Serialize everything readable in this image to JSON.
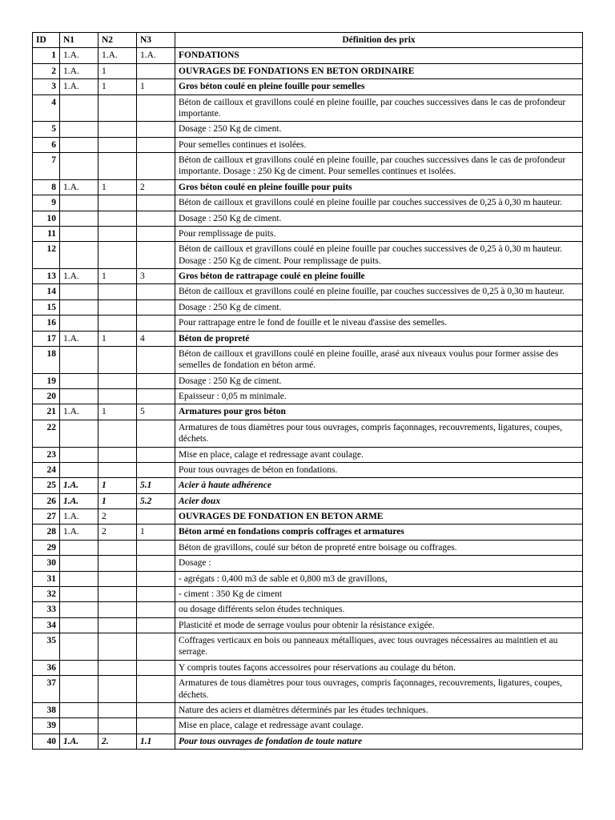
{
  "headers": {
    "id": "ID",
    "n1": "N1",
    "n2": "N2",
    "n3": "N3",
    "def": "Définition des prix"
  },
  "rows": [
    {
      "id": "1",
      "n1": "1.A.",
      "n2": "1.A.",
      "n3": "1.A.",
      "def": "FONDATIONS",
      "cls": "b"
    },
    {
      "id": "2",
      "n1": "1.A.",
      "n2": "1",
      "n3": "",
      "def": "OUVRAGES DE FONDATIONS EN BETON ORDINAIRE",
      "cls": "b"
    },
    {
      "id": "3",
      "n1": "1.A.",
      "n2": "1",
      "n3": "1",
      "def": "Gros béton coulé en pleine fouille pour semelles",
      "cls": "b"
    },
    {
      "id": "4",
      "n1": "",
      "n2": "",
      "n3": "",
      "def": "Béton de cailloux et gravillons coulé en pleine fouille, par couches successives dans le cas de profondeur importante.",
      "cls": "j"
    },
    {
      "id": "5",
      "n1": "",
      "n2": "",
      "n3": "",
      "def": "Dosage : 250 Kg de ciment."
    },
    {
      "id": "6",
      "n1": "",
      "n2": "",
      "n3": "",
      "def": "Pour semelles continues et isolées."
    },
    {
      "id": "7",
      "n1": "",
      "n2": "",
      "n3": "",
      "def": "Béton de cailloux et gravillons coulé en pleine fouille, par couches successives dans le cas de profondeur importante. Dosage : 250 Kg de ciment. Pour semelles continues et isolées.",
      "cls": "j"
    },
    {
      "id": "8",
      "n1": "1.A.",
      "n2": "1",
      "n3": "2",
      "def": "Gros béton coulé en pleine fouille pour puits",
      "cls": "b"
    },
    {
      "id": "9",
      "n1": "",
      "n2": "",
      "n3": "",
      "def": "Béton de cailloux et gravillons coulé en pleine fouille par couches successives de 0,25 à 0,30 m hauteur.",
      "cls": "j"
    },
    {
      "id": "10",
      "n1": "",
      "n2": "",
      "n3": "",
      "def": "Dosage : 250 Kg de ciment."
    },
    {
      "id": "11",
      "n1": "",
      "n2": "",
      "n3": "",
      "def": "Pour remplissage de puits."
    },
    {
      "id": "12",
      "n1": "",
      "n2": "",
      "n3": "",
      "def": "Béton de cailloux et gravillons coulé en pleine fouille par couches successives de 0,25 à 0,30 m hauteur. Dosage : 250 Kg de ciment. Pour remplissage de puits.",
      "cls": "j"
    },
    {
      "id": "13",
      "n1": "1.A.",
      "n2": "1",
      "n3": "3",
      "def": "Gros béton de rattrapage coulé en pleine fouille",
      "cls": "b"
    },
    {
      "id": "14",
      "n1": "",
      "n2": "",
      "n3": "",
      "def": "Béton de cailloux et gravillons coulé en pleine fouille, par couches successives de 0,25 à 0,30 m hauteur.",
      "cls": "j"
    },
    {
      "id": "15",
      "n1": "",
      "n2": "",
      "n3": "",
      "def": "Dosage : 250 Kg de ciment."
    },
    {
      "id": "16",
      "n1": "",
      "n2": "",
      "n3": "",
      "def": "Pour rattrapage entre le fond de fouille et le niveau d'assise des semelles."
    },
    {
      "id": "17",
      "n1": "1.A.",
      "n2": "1",
      "n3": "4",
      "def": "Béton de propreté",
      "cls": "b"
    },
    {
      "id": "18",
      "n1": "",
      "n2": "",
      "n3": "",
      "def": "Béton de cailloux et gravillons coulé en pleine fouille, arasé aux niveaux voulus pour former assise des semelles de fondation en béton armé.",
      "cls": "j"
    },
    {
      "id": "19",
      "n1": "",
      "n2": "",
      "n3": "",
      "def": "Dosage : 250 Kg de ciment."
    },
    {
      "id": "20",
      "n1": "",
      "n2": "",
      "n3": "",
      "def": "Epaisseur : 0,05 m minimale."
    },
    {
      "id": "21",
      "n1": "1.A.",
      "n2": "1",
      "n3": "5",
      "def": "Armatures pour gros béton",
      "cls": "b"
    },
    {
      "id": "22",
      "n1": "",
      "n2": "",
      "n3": "",
      "def": "Armatures de tous diamètres pour tous ouvrages, compris façonnages, recouvrements, ligatures, coupes, déchets.",
      "cls": "j"
    },
    {
      "id": "23",
      "n1": "",
      "n2": "",
      "n3": "",
      "def": "Mise en place, calage et redressage avant coulage."
    },
    {
      "id": "24",
      "n1": "",
      "n2": "",
      "n3": "",
      "def": "Pour tous ouvrages de béton en fondations."
    },
    {
      "id": "25",
      "n1": "1.A.",
      "n2": "1",
      "n3": "5.1",
      "def": "Acier à haute adhérence",
      "cls": "bi",
      "rowcls": "bi"
    },
    {
      "id": "26",
      "n1": "1.A.",
      "n2": "1",
      "n3": "5.2",
      "def": "Acier doux",
      "cls": "bi",
      "rowcls": "bi"
    },
    {
      "id": "27",
      "n1": "1.A.",
      "n2": "2",
      "n3": "",
      "def": "OUVRAGES DE FONDATION EN BETON ARME",
      "cls": "b"
    },
    {
      "id": "28",
      "n1": "1.A.",
      "n2": "2",
      "n3": "1",
      "def": "Béton armé en fondations compris coffrages et armatures",
      "cls": "b"
    },
    {
      "id": "29",
      "n1": "",
      "n2": "",
      "n3": "",
      "def": "Béton de gravillons, coulé sur béton de propreté entre boisage ou coffrages."
    },
    {
      "id": "30",
      "n1": "",
      "n2": "",
      "n3": "",
      "def": "Dosage :"
    },
    {
      "id": "31",
      "n1": "",
      "n2": "",
      "n3": "",
      "def": "- agrégats : 0,400 m3 de sable et 0,800 m3 de gravillons,"
    },
    {
      "id": "32",
      "n1": "",
      "n2": "",
      "n3": "",
      "def": "- ciment    : 350 Kg de ciment"
    },
    {
      "id": "33",
      "n1": "",
      "n2": "",
      "n3": "",
      "def": "ou dosage différents selon études techniques."
    },
    {
      "id": "34",
      "n1": "",
      "n2": "",
      "n3": "",
      "def": "Plasticité et mode de serrage voulus pour obtenir la résistance exigée."
    },
    {
      "id": "35",
      "n1": "",
      "n2": "",
      "n3": "",
      "def": "Coffrages verticaux en bois ou panneaux métalliques, avec tous ouvrages nécessaires au maintien et au serrage.",
      "cls": "j"
    },
    {
      "id": "36",
      "n1": "",
      "n2": "",
      "n3": "",
      "def": "Y compris toutes façons accessoires pour réservations au coulage du béton."
    },
    {
      "id": "37",
      "n1": "",
      "n2": "",
      "n3": "",
      "def": "Armatures de tous diamètres pour tous ouvrages, compris façonnages, recouvrements, ligatures, coupes, déchets.",
      "cls": "j"
    },
    {
      "id": "38",
      "n1": "",
      "n2": "",
      "n3": "",
      "def": "Nature des aciers et diamètres déterminés par les études techniques."
    },
    {
      "id": "39",
      "n1": "",
      "n2": "",
      "n3": "",
      "def": "Mise en place, calage et redressage avant coulage."
    },
    {
      "id": "40",
      "n1": "1.A.",
      "n2": "2.",
      "n3": "1.1",
      "def": "Pour tous ouvrages de fondation de toute nature",
      "cls": "bi",
      "rowcls": "bi"
    }
  ]
}
